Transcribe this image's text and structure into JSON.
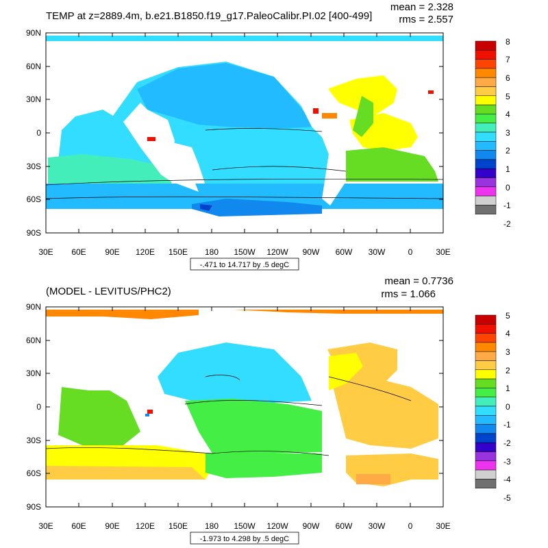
{
  "panels": [
    {
      "title": "TEMP at z=2889.4m, b.e21.B1850.f19_g17.PaleoCalibr.PI.02 [400-499]",
      "mean_label": "mean = 2.328",
      "rms_label": "rms = 2.557",
      "contour_note": "-.471 to 14.717 by .5 degC",
      "colorbar_labels": [
        "8",
        "7",
        "6",
        "5",
        "4",
        "3",
        "2",
        "1",
        "0",
        "-1",
        "-2"
      ],
      "colorbar_colors": [
        "#c80000",
        "#ee1100",
        "#ff4400",
        "#ff8800",
        "#ffaa44",
        "#ffcc44",
        "#ffff00",
        "#66dd22",
        "#44ee44",
        "#44eebb",
        "#33ddff",
        "#22bbff",
        "#1188ee",
        "#0044cc",
        "#3300cc",
        "#9933dd",
        "#ee33ee",
        "#d0d0d0",
        "#707070"
      ]
    },
    {
      "title": "(MODEL - LEVITUS/PHC2)",
      "mean_label": "mean = 0.7736",
      "rms_label": "rms = 1.066",
      "contour_note": "-1.973 to 4.298 by .5 degC",
      "colorbar_labels": [
        "5",
        "4",
        "3",
        "2",
        "1",
        "0",
        "-1",
        "-2",
        "-3",
        "-4",
        "-5"
      ],
      "colorbar_colors": [
        "#c80000",
        "#ee1100",
        "#ff4400",
        "#ff8800",
        "#ffaa44",
        "#ffcc44",
        "#ffff00",
        "#66dd22",
        "#44ee44",
        "#44eebb",
        "#33ddff",
        "#22bbff",
        "#1188ee",
        "#0044cc",
        "#3300cc",
        "#9933dd",
        "#ee33ee",
        "#d0d0d0",
        "#707070"
      ]
    }
  ],
  "lat_labels": [
    "90N",
    "60N",
    "30N",
    "0",
    "30S",
    "60S",
    "90S"
  ],
  "lon_labels": [
    "30E",
    "60E",
    "90E",
    "120E",
    "150E",
    "180",
    "150W",
    "120W",
    "90W",
    "60W",
    "30W",
    "0",
    "30E"
  ]
}
